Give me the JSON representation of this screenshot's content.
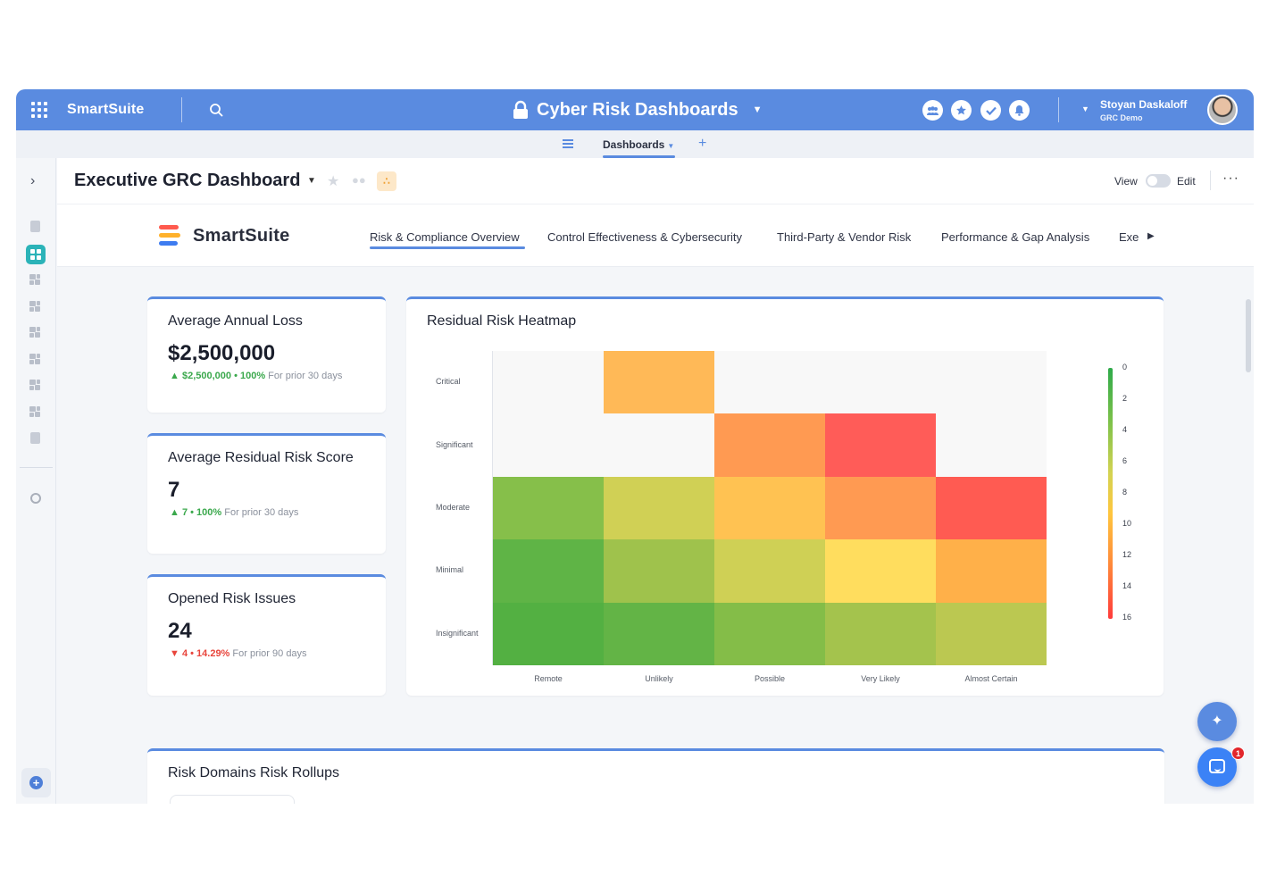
{
  "topbar": {
    "brand": "SmartSuite",
    "solution_title": "Cyber Risk Dashboards",
    "user_name": "Stoyan Daskaloff",
    "user_subtitle": "GRC Demo",
    "accent": "#5a8be0"
  },
  "subnav": {
    "tab_label": "Dashboards",
    "add_label": "+"
  },
  "header": {
    "title": "Executive GRC Dashboard",
    "view_label": "View",
    "edit_label": "Edit",
    "more_label": "···"
  },
  "dash_nav": {
    "logo_text": "SmartSuite",
    "tabs": [
      {
        "label": "Risk & Compliance Overview"
      },
      {
        "label": "Control Effectiveness & Cybersecurity"
      },
      {
        "label": "Third-Party & Vendor Risk"
      },
      {
        "label": "Performance & Gap Analysis"
      },
      {
        "label": "Exe"
      }
    ]
  },
  "metrics": [
    {
      "title": "Average Annual Loss",
      "value": "$2,500,000",
      "delta": "$2,500,000 • 100%",
      "period": "For prior 30 days",
      "direction": "up"
    },
    {
      "title": "Average Residual Risk Score",
      "value": "7",
      "delta": "7 • 100%",
      "period": "For prior 30 days",
      "direction": "up"
    },
    {
      "title": "Opened Risk Issues",
      "value": "24",
      "delta": "4 • 14.29%",
      "period": "For prior 90 days",
      "direction": "down"
    }
  ],
  "chart_data": {
    "type": "heatmap",
    "title": "Residual Risk Heatmap",
    "x_categories": [
      "Remote",
      "Unlikely",
      "Possible",
      "Very Likely",
      "Almost Certain"
    ],
    "y_categories": [
      "Critical",
      "Significant",
      "Moderate",
      "Minimal",
      "Insignificant"
    ],
    "cells": [
      {
        "y": "Critical",
        "x": "Unlikely",
        "color": "#ffb957"
      },
      {
        "y": "Significant",
        "x": "Possible",
        "color": "#ff9a52"
      },
      {
        "y": "Significant",
        "x": "Very Likely",
        "color": "#ff5c58"
      },
      {
        "y": "Moderate",
        "x": "Remote",
        "color": "#86bf4a"
      },
      {
        "y": "Moderate",
        "x": "Unlikely",
        "color": "#d0d055"
      },
      {
        "y": "Moderate",
        "x": "Possible",
        "color": "#ffc252"
      },
      {
        "y": "Moderate",
        "x": "Very Likely",
        "color": "#ff9a52"
      },
      {
        "y": "Moderate",
        "x": "Almost Certain",
        "color": "#ff5b52"
      },
      {
        "y": "Minimal",
        "x": "Remote",
        "color": "#5fb446"
      },
      {
        "y": "Minimal",
        "x": "Unlikely",
        "color": "#9fc24c"
      },
      {
        "y": "Minimal",
        "x": "Possible",
        "color": "#cfd055"
      },
      {
        "y": "Minimal",
        "x": "Very Likely",
        "color": "#ffdd5e"
      },
      {
        "y": "Minimal",
        "x": "Almost Certain",
        "color": "#ffb049"
      },
      {
        "y": "Insignificant",
        "x": "Remote",
        "color": "#53b042"
      },
      {
        "y": "Insignificant",
        "x": "Unlikely",
        "color": "#63b446"
      },
      {
        "y": "Insignificant",
        "x": "Possible",
        "color": "#84bd48"
      },
      {
        "y": "Insignificant",
        "x": "Very Likely",
        "color": "#a4c34d"
      },
      {
        "y": "Insignificant",
        "x": "Almost Certain",
        "color": "#bbc851"
      }
    ],
    "empty_color": "#f8f8f8",
    "legend": {
      "placement": "right",
      "ticks": [
        "0",
        "2",
        "4",
        "6",
        "8",
        "10",
        "12",
        "14",
        "16"
      ]
    }
  },
  "rollup": {
    "title": "Risk Domains Risk Rollups"
  },
  "fab": {
    "notification_count": "1"
  }
}
